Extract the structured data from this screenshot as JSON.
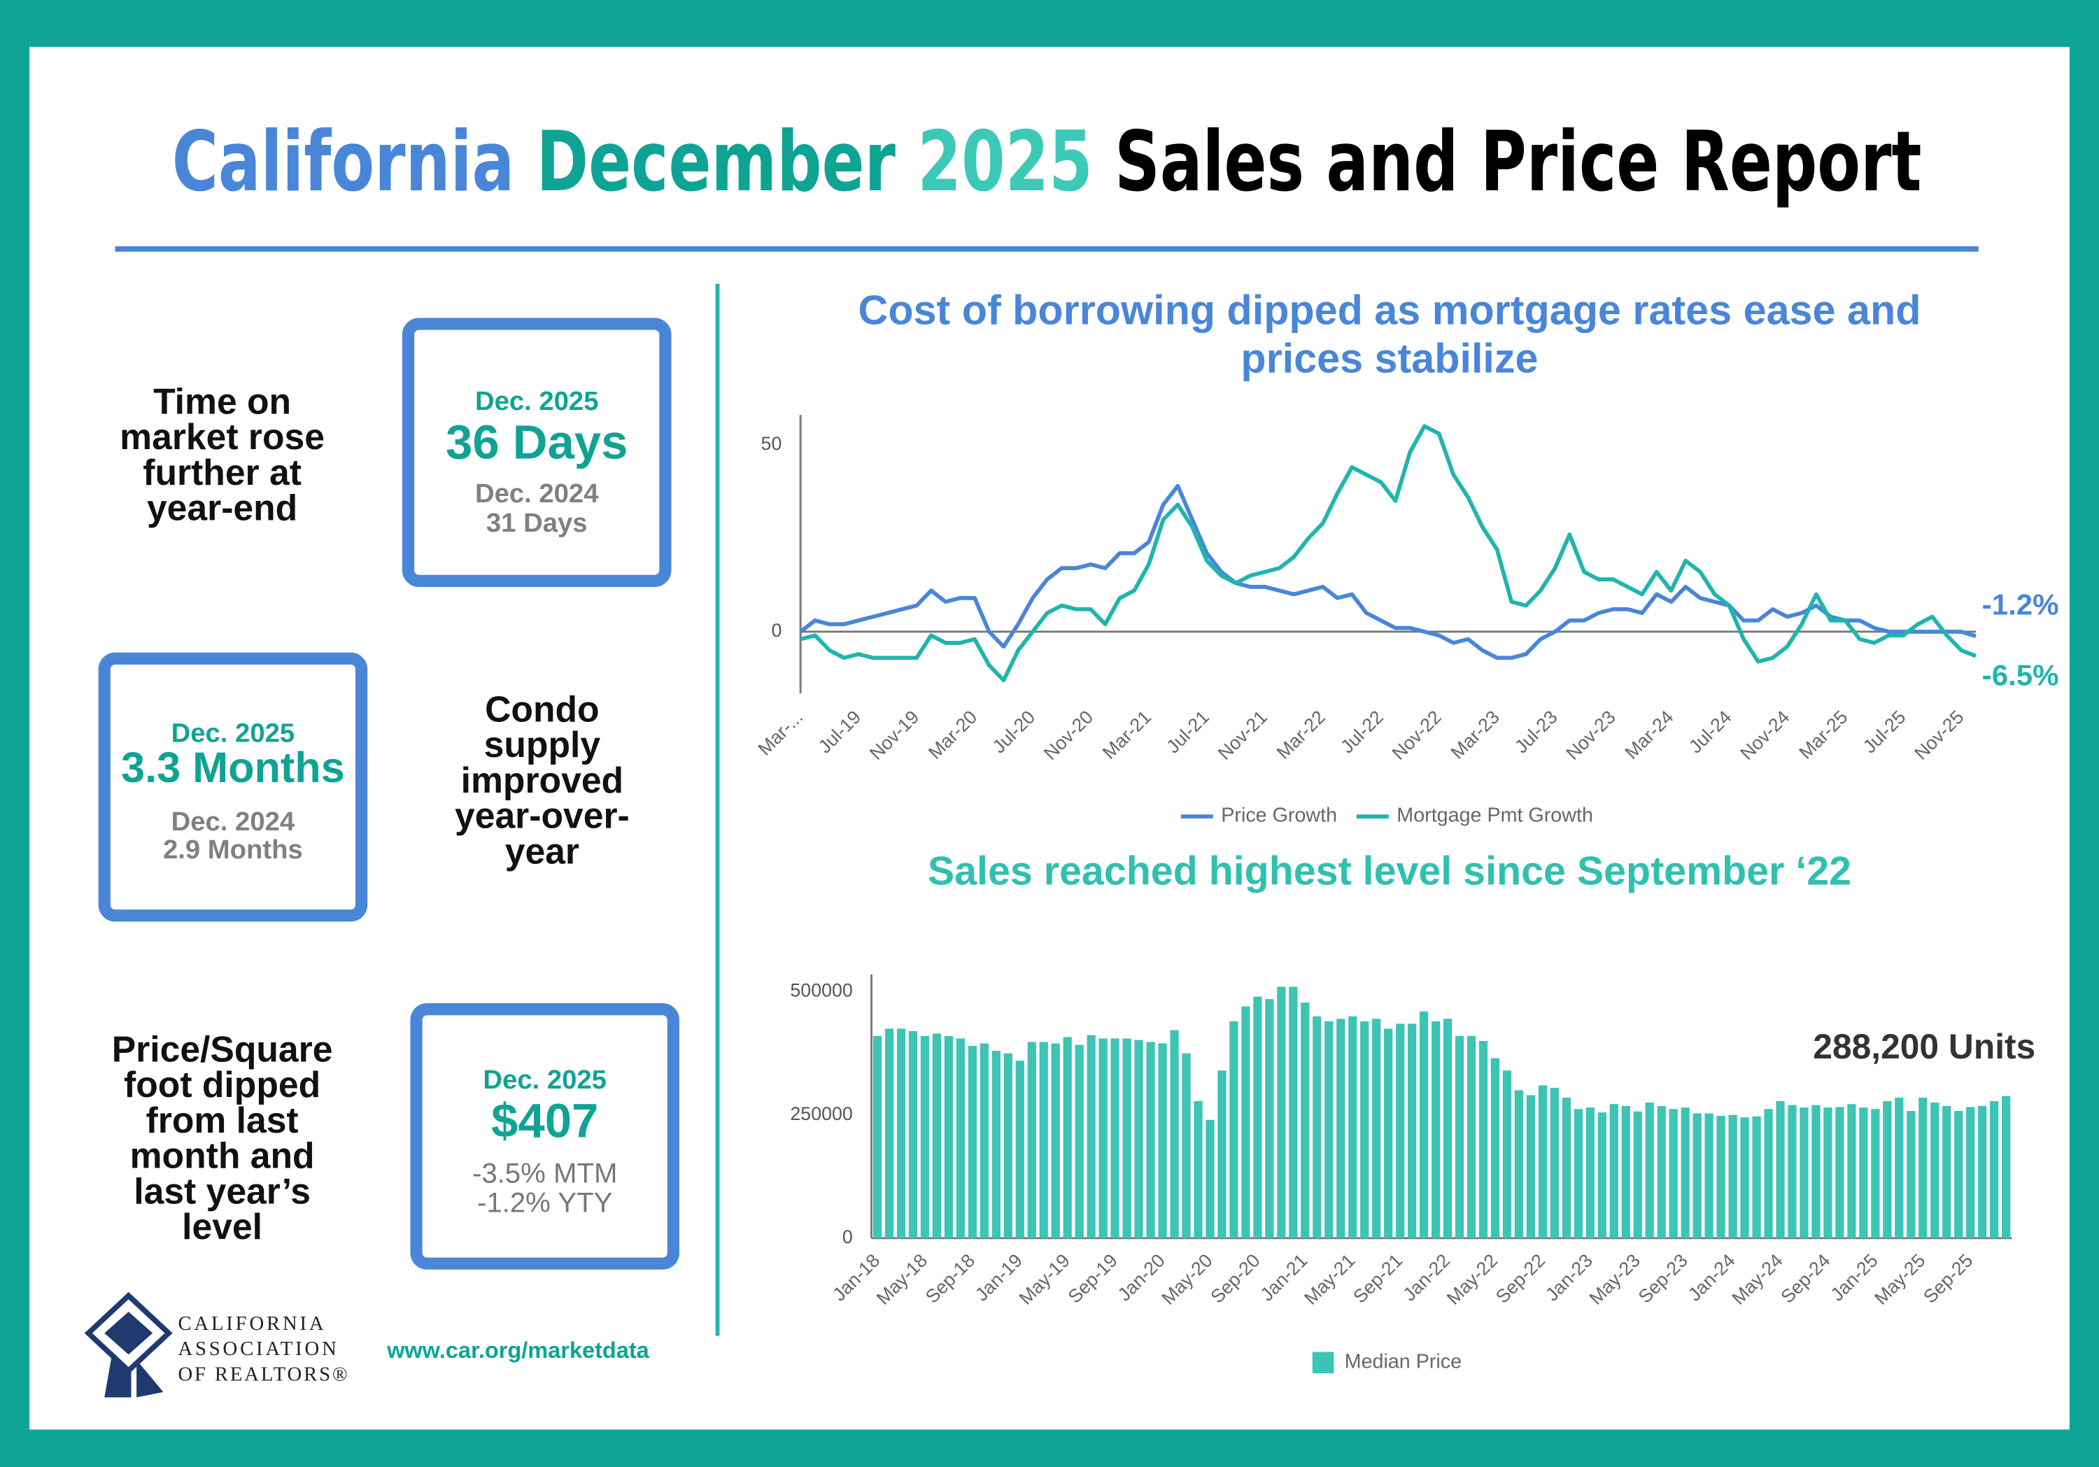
{
  "header": {
    "title": [
      "California",
      "December",
      "2025",
      "Sales and Price Report"
    ]
  },
  "stats": [
    {
      "description": [
        "Time on",
        "market rose",
        "further at",
        "year-end"
      ],
      "current_period": "Dec. 2025",
      "current_value": "36 Days",
      "prior_period": "Dec. 2024",
      "prior_value": "31 Days"
    },
    {
      "description": [
        "Condo",
        "supply",
        "improved",
        "year-over-",
        "year"
      ],
      "current_period": "Dec. 2025",
      "current_value": "3.3 Months",
      "prior_period": "Dec. 2024",
      "prior_value": "2.9 Months"
    },
    {
      "description": [
        "Price/Square",
        "foot dipped",
        "from last",
        "month and",
        "last year’s",
        "level"
      ],
      "current_period": "Dec. 2025",
      "current_value": "$407",
      "changes": [
        "-3.5% MTM",
        "-1.2% YTY"
      ]
    }
  ],
  "footer": {
    "organization": [
      "CALIFORNIA",
      "ASSOCIATION",
      "OF REALTORS®"
    ],
    "url": "www.car.org/marketdata"
  },
  "chart_data": [
    {
      "type": "line",
      "title": [
        "Cost of borrowing dipped as mortgage rates ease and",
        "prices stabilize"
      ],
      "categories": [
        "Mar-...",
        null,
        null,
        null,
        "Jul-19",
        null,
        null,
        null,
        "Nov-19",
        null,
        null,
        null,
        "Mar-20",
        null,
        null,
        null,
        "Jul-20",
        null,
        null,
        null,
        "Nov-20",
        null,
        null,
        null,
        "Mar-21",
        null,
        null,
        null,
        "Jul-21",
        null,
        null,
        null,
        "Nov-21",
        null,
        null,
        null,
        "Mar-22",
        null,
        null,
        null,
        "Jul-22",
        null,
        null,
        null,
        "Nov-22",
        null,
        null,
        null,
        "Mar-23",
        null,
        null,
        null,
        "Jul-23",
        null,
        null,
        null,
        "Nov-23",
        null,
        null,
        null,
        "Mar-24",
        null,
        null,
        null,
        "Jul-24",
        null,
        null,
        null,
        "Nov-24",
        null,
        null,
        null,
        "Mar-25",
        null,
        null,
        null,
        "Jul-25",
        null,
        null,
        null,
        "Nov-25",
        null
      ],
      "series": [
        {
          "name": "Price Growth",
          "color": "#4a86d8",
          "values": [
            0,
            3,
            2,
            2,
            3,
            4,
            5,
            6,
            7,
            11,
            8,
            9,
            9,
            0,
            -4,
            2,
            9,
            14,
            17,
            17,
            18,
            17,
            21,
            21,
            24,
            34,
            39,
            30,
            21,
            16,
            13,
            12,
            12,
            11,
            10,
            11,
            12,
            9,
            10,
            5,
            3,
            1,
            1,
            0,
            -1,
            -3,
            -2,
            -5,
            -7,
            -7,
            -6,
            -2,
            0,
            3,
            3,
            5,
            6,
            6,
            5,
            10,
            8,
            12,
            9,
            8,
            7,
            3,
            3,
            6,
            4,
            5,
            7,
            4,
            3,
            3,
            1,
            0,
            0,
            0,
            0,
            0,
            0,
            -1.2
          ],
          "value_labels": [
            null,
            null,
            null,
            null,
            null,
            null,
            null,
            null,
            null,
            null,
            null,
            null,
            null,
            null,
            null,
            null,
            null,
            null,
            null,
            null,
            null,
            null,
            null,
            null,
            null,
            null,
            null,
            null,
            null,
            null,
            null,
            null,
            null,
            null,
            null,
            null,
            null,
            null,
            null,
            null,
            null,
            null,
            null,
            null,
            null,
            null,
            null,
            null,
            null,
            null,
            null,
            null,
            null,
            null,
            null,
            null,
            null,
            null,
            null,
            null,
            null,
            null,
            null,
            null,
            null,
            null,
            null,
            null,
            null,
            null,
            null,
            null,
            null,
            null,
            null,
            null,
            null,
            null,
            null,
            null,
            null,
            "-1.2%"
          ]
        },
        {
          "name": "Mortgage Pmt Growth",
          "color": "#1fb5ad",
          "values": [
            -2,
            -1,
            -5,
            -7,
            -6,
            -7,
            -7,
            -7,
            -7,
            -1,
            -3,
            -3,
            -2,
            -9,
            -13,
            -5,
            0,
            5,
            7,
            6,
            6,
            2,
            9,
            11,
            18,
            30,
            34,
            28,
            19,
            15,
            13,
            15,
            16,
            17,
            20,
            25,
            29,
            37,
            44,
            42,
            40,
            35,
            48,
            55,
            53,
            42,
            36,
            28,
            22,
            8,
            7,
            11,
            17,
            26,
            16,
            14,
            14,
            12,
            10,
            16,
            11,
            19,
            16,
            10,
            7,
            -2,
            -8,
            -7,
            -4,
            2,
            10,
            3,
            3,
            -2,
            -3,
            -1,
            -1,
            2,
            4,
            -1,
            -5,
            -6.5
          ],
          "value_labels": [
            null,
            null,
            null,
            null,
            null,
            null,
            null,
            null,
            null,
            null,
            null,
            null,
            null,
            null,
            null,
            null,
            null,
            null,
            null,
            null,
            null,
            null,
            null,
            null,
            null,
            null,
            null,
            null,
            null,
            null,
            null,
            null,
            null,
            null,
            null,
            null,
            null,
            null,
            null,
            null,
            null,
            null,
            null,
            null,
            null,
            null,
            null,
            null,
            null,
            null,
            null,
            null,
            null,
            null,
            null,
            null,
            null,
            null,
            null,
            null,
            null,
            null,
            null,
            null,
            null,
            null,
            null,
            null,
            null,
            null,
            null,
            null,
            null,
            null,
            null,
            null,
            null,
            null,
            null,
            null,
            null,
            "-6.5%"
          ]
        }
      ],
      "ylim": [
        -16.5,
        58
      ],
      "yticks": [
        0,
        50
      ],
      "grid": false,
      "legend": "bottom"
    },
    {
      "type": "bar",
      "title": [
        "Sales reached highest level since September ‘22"
      ],
      "categories": [
        "Jan-18",
        null,
        null,
        null,
        "May-18",
        null,
        null,
        null,
        "Sep-18",
        null,
        null,
        null,
        "Jan-19",
        null,
        null,
        null,
        "May-19",
        null,
        null,
        null,
        "Sep-19",
        null,
        null,
        null,
        "Jan-20",
        null,
        null,
        null,
        "May-20",
        null,
        null,
        null,
        "Sep-20",
        null,
        null,
        null,
        "Jan-21",
        null,
        null,
        null,
        "May-21",
        null,
        null,
        null,
        "Sep-21",
        null,
        null,
        null,
        "Jan-22",
        null,
        null,
        null,
        "May-22",
        null,
        null,
        null,
        "Sep-22",
        null,
        null,
        null,
        "Jan-23",
        null,
        null,
        null,
        "May-23",
        null,
        null,
        null,
        "Sep-23",
        null,
        null,
        null,
        "Jan-24",
        null,
        null,
        null,
        "May-24",
        null,
        null,
        null,
        "Sep-24",
        null,
        null,
        null,
        "Jan-25",
        null,
        null,
        null,
        "May-25",
        null,
        null,
        null,
        "Sep-25",
        null,
        null,
        null
      ],
      "series": [
        {
          "name": "Median Price",
          "color": "#3cc4b4",
          "values": [
            410000,
            425000,
            425000,
            420000,
            410000,
            415000,
            410000,
            405000,
            390000,
            395000,
            380000,
            375000,
            360000,
            398000,
            398000,
            395000,
            408000,
            392000,
            412000,
            405000,
            405000,
            405000,
            402000,
            398000,
            395000,
            422000,
            375000,
            278000,
            240000,
            340000,
            440000,
            470000,
            490000,
            485000,
            510000,
            510000,
            478000,
            450000,
            440000,
            445000,
            450000,
            440000,
            445000,
            425000,
            435000,
            435000,
            460000,
            440000,
            445000,
            410000,
            410000,
            400000,
            365000,
            340000,
            300000,
            290000,
            310000,
            305000,
            285000,
            262000,
            265000,
            255000,
            272000,
            268000,
            257000,
            275000,
            268000,
            262000,
            265000,
            253000,
            253000,
            248000,
            250000,
            245000,
            247000,
            262000,
            278000,
            270000,
            265000,
            270000,
            265000,
            266000,
            272000,
            265000,
            262000,
            278000,
            285000,
            258000,
            285000,
            275000,
            268000,
            258000,
            266000,
            268000,
            278000,
            288200
          ],
          "value_labels": [
            null,
            null,
            null,
            null,
            null,
            null,
            null,
            null,
            null,
            null,
            null,
            null,
            null,
            null,
            null,
            null,
            null,
            null,
            null,
            null,
            null,
            null,
            null,
            null,
            null,
            null,
            null,
            null,
            null,
            null,
            null,
            null,
            null,
            null,
            null,
            null,
            null,
            null,
            null,
            null,
            null,
            null,
            null,
            null,
            null,
            null,
            null,
            null,
            null,
            null,
            null,
            null,
            null,
            null,
            null,
            null,
            null,
            null,
            null,
            null,
            null,
            null,
            null,
            null,
            null,
            null,
            null,
            null,
            null,
            null,
            null,
            null,
            null,
            null,
            null,
            null,
            null,
            null,
            null,
            null,
            null,
            null,
            null,
            null,
            null,
            null,
            null,
            null,
            null,
            null,
            null,
            null,
            null,
            null,
            null,
            "288,200 Units"
          ]
        }
      ],
      "ylim": [
        0,
        535000
      ],
      "yticks": [
        0,
        250000,
        500000
      ],
      "grid": false,
      "legend": "bottom"
    }
  ]
}
